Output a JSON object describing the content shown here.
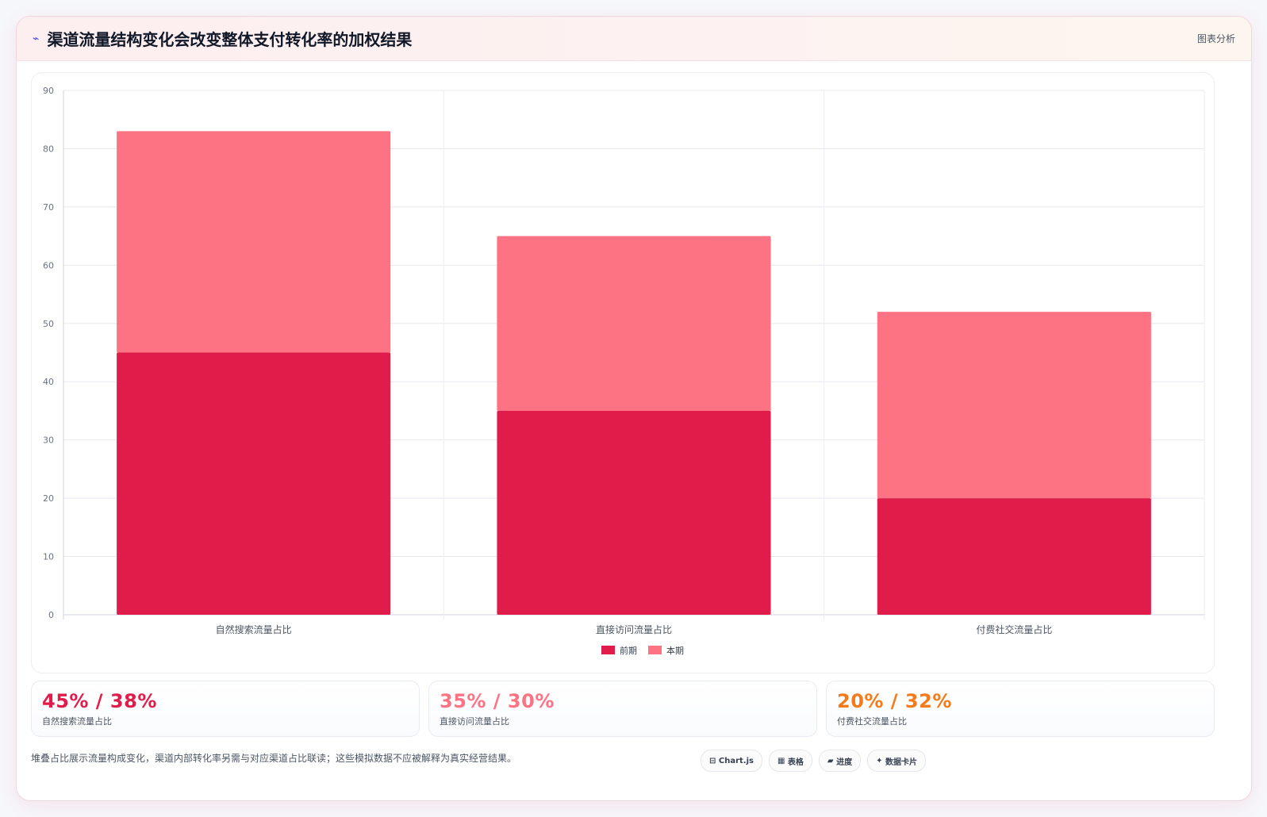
{
  "header": {
    "icon": "lightning-icon",
    "title": "渠道流量结构变化会改变整体支付转化率的加权结果",
    "tag": "图表分析"
  },
  "chart_data": {
    "type": "bar",
    "stacked": true,
    "categories": [
      "自然搜索流量占比",
      "直接访问流量占比",
      "付费社交流量占比"
    ],
    "series": [
      {
        "name": "前期",
        "values": [
          45,
          35,
          20
        ],
        "color": "#df1c4a"
      },
      {
        "name": "本期",
        "values": [
          38,
          30,
          32
        ],
        "color": "#fd7384"
      }
    ],
    "ylim": [
      0,
      90
    ],
    "yticks": [
      0,
      10,
      20,
      30,
      40,
      50,
      60,
      70,
      80,
      90
    ],
    "grid": true,
    "legend": "bottom"
  },
  "stats": [
    {
      "value": "45% / 38%",
      "label": "自然搜索流量占比",
      "color": "#df1c4a"
    },
    {
      "value": "35% / 30%",
      "label": "直接访问流量占比",
      "color": "#fd7384"
    },
    {
      "value": "20% / 32%",
      "label": "付费社交流量占比",
      "color": "#f47a1a"
    }
  ],
  "footer": {
    "note": "堆叠占比展示流量构成变化，渠道内部转化率另需与对应渠道占比联读；这些模拟数据不应被解释为真实经营结果。",
    "chips": [
      {
        "icon": "⊟",
        "label": "Chart.js"
      },
      {
        "icon": "▦",
        "label": "表格"
      },
      {
        "icon": "▰",
        "label": "进度"
      },
      {
        "icon": "✦",
        "label": "数据卡片"
      }
    ]
  }
}
